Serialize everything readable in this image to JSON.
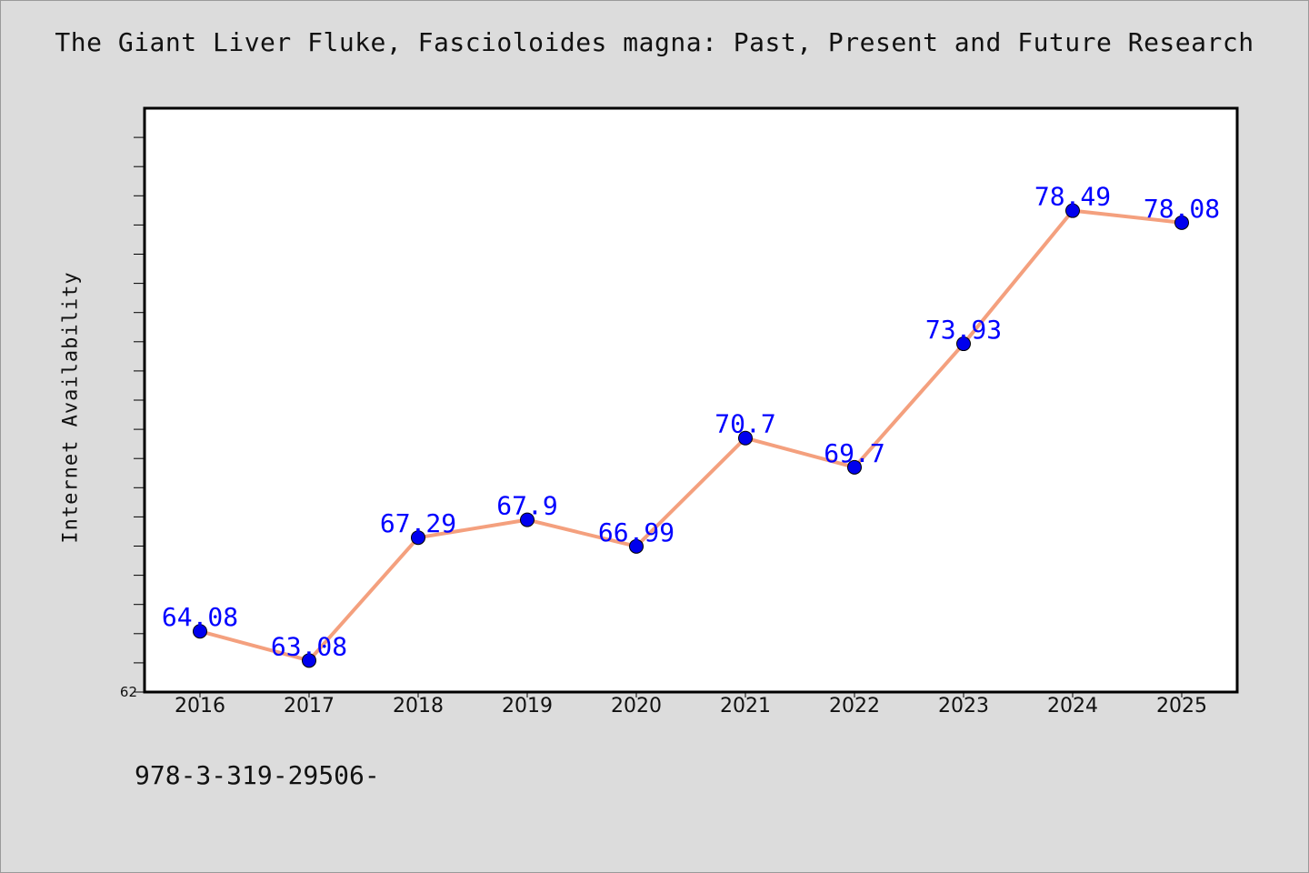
{
  "chart_data": {
    "type": "line",
    "title": "The Giant Liver Fluke, Fascioloides magna: Past, Present and Future Research",
    "xlabel": "",
    "ylabel": "Internet Availability",
    "x": [
      "2016",
      "2017",
      "2018",
      "2019",
      "2020",
      "2021",
      "2022",
      "2023",
      "2024",
      "2025"
    ],
    "series": [
      {
        "values": [
          64.08,
          63.08,
          67.29,
          67.9,
          66.99,
          70.7,
          69.7,
          73.93,
          78.49,
          78.08
        ]
      }
    ],
    "data_labels": [
      "64.08",
      "63.08",
      "67.29",
      "67.9",
      "66.99",
      "70.7",
      "69.7",
      "73.93",
      "78.49",
      "78.08"
    ],
    "ylim": [
      62,
      82
    ],
    "y_tick_labels": [
      "62"
    ],
    "grid": false,
    "legend": "none",
    "colors": {
      "line": "#f4a07e",
      "marker": "#0000ee",
      "data_label": "#0000ff",
      "plot_background": "#ffffff",
      "page_background": "#dcdcdc"
    }
  },
  "footnote": "978-3-319-29506-"
}
